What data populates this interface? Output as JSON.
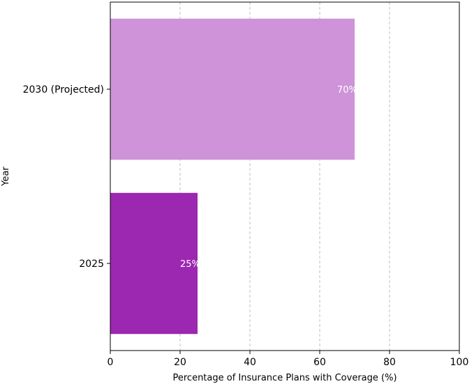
{
  "chart_data": {
    "type": "bar",
    "orientation": "horizontal",
    "categories": [
      "2025",
      "2030 (Projected)"
    ],
    "values": [
      25,
      70
    ],
    "value_labels": [
      "25%",
      "70%"
    ],
    "colors": [
      "#9c27b0",
      "#ce93d8"
    ],
    "title": "",
    "xlabel": "Percentage of Insurance Plans with Coverage (%)",
    "ylabel": "Year",
    "xlim": [
      0,
      100
    ],
    "xticks": [
      0,
      20,
      40,
      60,
      80,
      100
    ],
    "grid": "x, dashed"
  }
}
